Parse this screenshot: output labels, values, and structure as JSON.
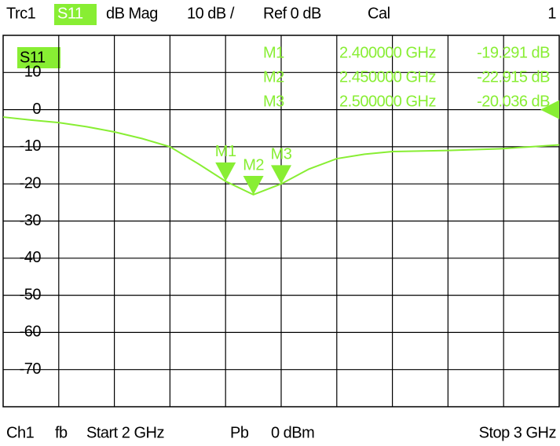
{
  "chart_data": {
    "type": "line",
    "header": [
      "Trc1",
      "S11",
      "dB Mag",
      "10 dB /",
      "Ref 0 dB",
      "Cal",
      "1"
    ],
    "footer": [
      "Ch1",
      "fb",
      "Start 2 GHz",
      "Pb",
      "0 dBm",
      "Stop 3 GHz"
    ],
    "trace_label": "S11",
    "xlim": [
      2,
      3
    ],
    "ylim": [
      -80,
      20
    ],
    "yticks": [
      10,
      0,
      -10,
      -20,
      -30,
      -40,
      -50,
      -60,
      -70
    ],
    "grid": true,
    "ref_level": 0,
    "series": [
      {
        "name": "S11",
        "color": "#88ee33",
        "x": [
          2.0,
          2.05,
          2.1,
          2.15,
          2.2,
          2.25,
          2.3,
          2.35,
          2.4,
          2.45,
          2.5,
          2.55,
          2.6,
          2.65,
          2.7,
          2.8,
          2.9,
          3.0
        ],
        "values": [
          -2,
          -2.8,
          -3.5,
          -4.6,
          -6,
          -7.8,
          -10,
          -14.5,
          -19.3,
          -22.9,
          -20,
          -16,
          -13.2,
          -12,
          -11.3,
          -11,
          -10.5,
          -9.5
        ]
      }
    ],
    "markers": [
      {
        "name": "M1",
        "x": 2.4,
        "x_label": "2.400000 GHz",
        "y": -19.291,
        "y_label": "-19.291 dB"
      },
      {
        "name": "M2",
        "x": 2.45,
        "x_label": "2.450000 GHz",
        "y": -22.915,
        "y_label": "-22.915 dB"
      },
      {
        "name": "M3",
        "x": 2.5,
        "x_label": "2.500000 GHz",
        "y": -20.036,
        "y_label": "-20.036 dB"
      }
    ]
  }
}
